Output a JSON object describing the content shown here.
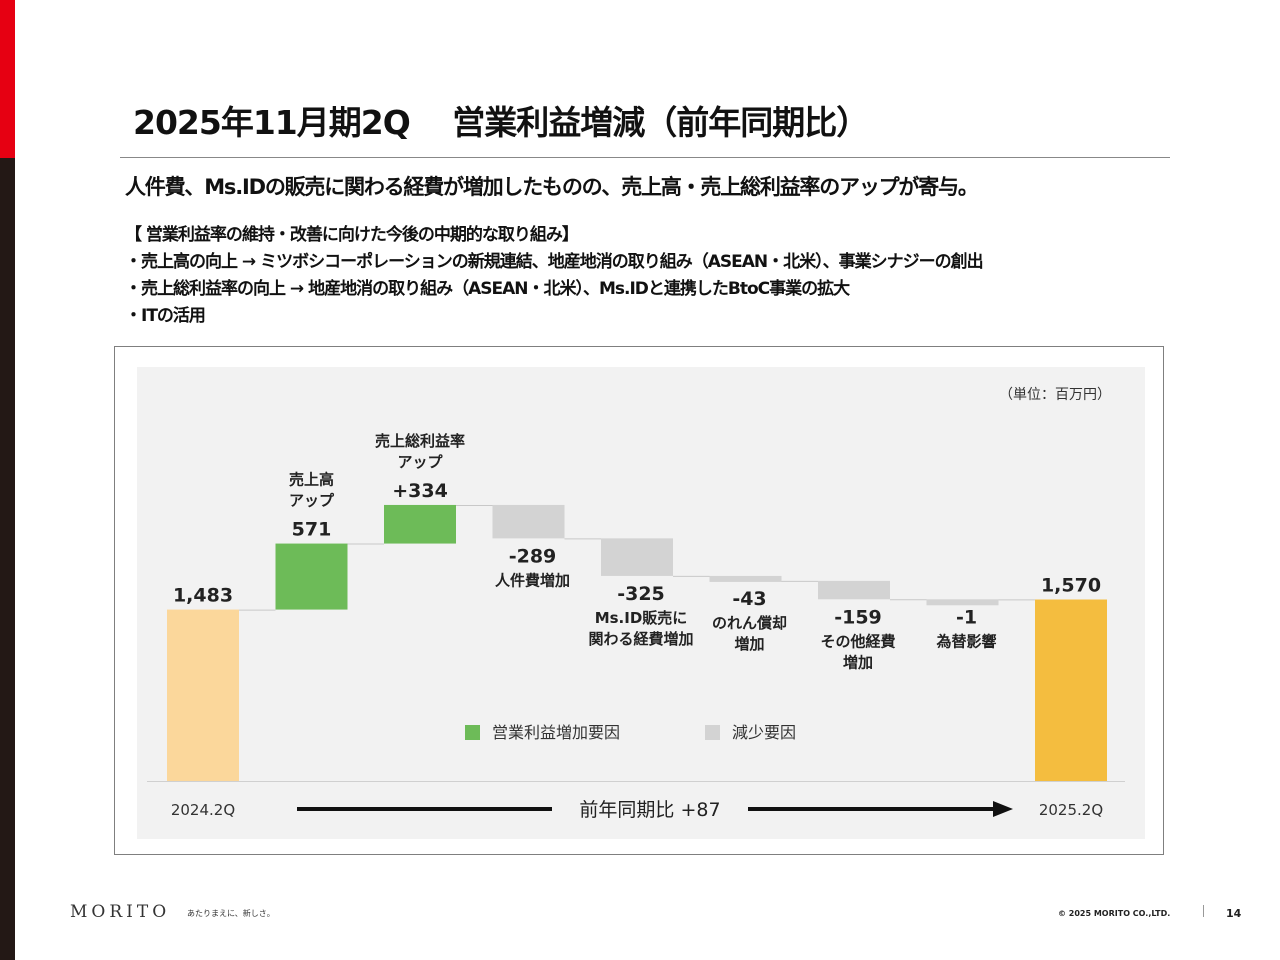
{
  "page": {
    "title": "2025年11月期2Q　 営業利益増減（前年同期比）",
    "subtitle": "人件費、Ms.IDの販売に関わる経費が増加したものの、売上高・売上総利益率のアップが寄与。",
    "initiatives_heading": "【 営業利益率の維持・改善に向けた今後の中期的な取り組み】",
    "initiatives": [
      "・売上高の向上 → ミツボシコーポレーションの新規連結、地産地消の取り組み（ASEAN・北米）、事業シナジーの創出",
      "・売上総利益率の向上 → 地産地消の取り組み（ASEAN・北米）、Ms.IDと連携したBtoC事業の拡大",
      "・ITの活用"
    ],
    "footer": {
      "logo": "MORITO",
      "tagline": "あたりまえに、新しさ。",
      "copyright": "© 2025 MORITO CO.,LTD.",
      "page_number": "14"
    }
  },
  "chart_data": {
    "type": "bar",
    "subtype": "waterfall",
    "unit_note": "（単位：百万円）",
    "steps": [
      {
        "kind": "total",
        "label_lines": [],
        "value": 1483,
        "value_label": "1,483",
        "axis_label": "2024.2Q",
        "color": "#fbd79b"
      },
      {
        "kind": "increase",
        "label_lines": [
          "売上高",
          "アップ"
        ],
        "value": 571,
        "value_label": "571",
        "color": "#6dbb58"
      },
      {
        "kind": "increase",
        "label_lines": [
          "売上総利益率",
          "アップ"
        ],
        "value": 334,
        "value_label": "+334",
        "color": "#6dbb58"
      },
      {
        "kind": "decrease",
        "label_lines": [
          "人件費増加"
        ],
        "value": -289,
        "value_label": "-289",
        "color": "#d3d3d3"
      },
      {
        "kind": "decrease",
        "label_lines": [
          "Ms.ID販売に",
          "関わる経費増加"
        ],
        "value": -325,
        "value_label": "-325",
        "color": "#d3d3d3"
      },
      {
        "kind": "decrease",
        "label_lines": [
          "のれん償却",
          "増加"
        ],
        "value": -43,
        "value_label": "-43",
        "color": "#d3d3d3"
      },
      {
        "kind": "decrease",
        "label_lines": [
          "その他経費",
          "増加"
        ],
        "value": -159,
        "value_label": "-159",
        "color": "#d3d3d3"
      },
      {
        "kind": "decrease",
        "label_lines": [
          "為替影響"
        ],
        "value": -1,
        "value_label": "-1",
        "color": "#d3d3d3"
      },
      {
        "kind": "total",
        "label_lines": [],
        "value": 1570,
        "value_label": "1,570",
        "axis_label": "2025.2Q",
        "color": "#f4bd3f"
      }
    ],
    "legend": [
      {
        "label": "営業利益増加要因",
        "color": "#6dbb58"
      },
      {
        "label": "減少要因",
        "color": "#d3d3d3"
      }
    ],
    "yoy_label": "前年同期比 +87",
    "ylim": [
      0,
      2400
    ],
    "grid": false,
    "background": "#f2f2f2"
  }
}
